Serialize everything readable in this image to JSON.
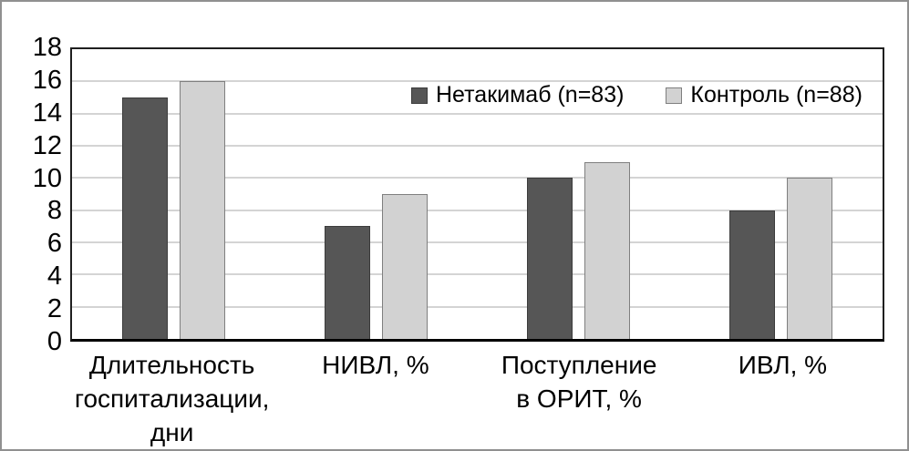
{
  "chart_data": {
    "type": "bar",
    "title": "",
    "categories": [
      "Длительность\nгоспитализации, дни",
      "НИВЛ, %",
      "Поступление\nв ОРИТ, %",
      "ИВЛ, %"
    ],
    "series": [
      {
        "name": "Нетакимаб (n=83)",
        "values": [
          15,
          7,
          10,
          8
        ],
        "color": "#565656",
        "border_color": "#3c3c3c"
      },
      {
        "name": "Контроль (n=88)",
        "values": [
          16,
          9,
          11,
          10
        ],
        "color": "#d2d2d2",
        "border_color": "#7f7f7f"
      }
    ],
    "y_axis": {
      "min": 0,
      "max": 18,
      "step": 2
    },
    "x_axis_label": "",
    "y_axis_label": "",
    "grid": true,
    "gridline_color": "#d4d4d4",
    "legend_position": "inside-top-right",
    "plot_border_color": "#1f1f1f",
    "outer_border_color": "#909090",
    "background_color": "#ffffff"
  }
}
